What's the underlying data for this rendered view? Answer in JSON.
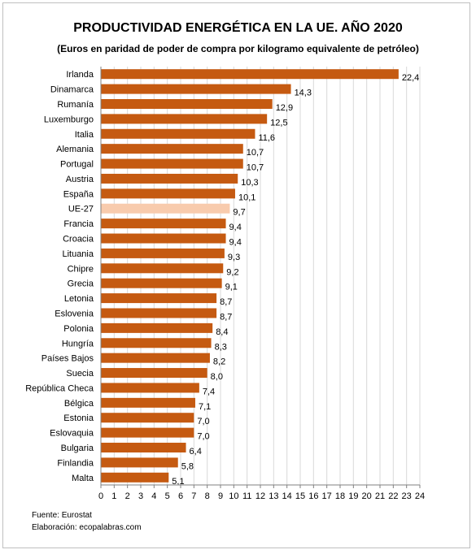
{
  "chart_data": {
    "type": "bar",
    "orientation": "horizontal",
    "title": "PRODUCTIVIDAD ENERGÉTICA EN LA UE. AÑO 2020",
    "subtitle": "(Euros en paridad de poder de compra por kilogramo equivalente de petróleo)",
    "categories": [
      "Irlanda",
      "Dinamarca",
      "Rumanía",
      "Luxemburgo",
      "Italia",
      "Alemania",
      "Portugal",
      "Austria",
      "España",
      "UE-27",
      "Francia",
      "Croacia",
      "Lituania",
      "Chipre",
      "Grecia",
      "Letonia",
      "Eslovenia",
      "Polonia",
      "Hungría",
      "Países Bajos",
      "Suecia",
      "República Checa",
      "Bélgica",
      "Estonia",
      "Eslovaquia",
      "Bulgaria",
      "Finlandia",
      "Malta"
    ],
    "values": [
      22.4,
      14.3,
      12.9,
      12.5,
      11.6,
      10.7,
      10.7,
      10.3,
      10.1,
      9.7,
      9.4,
      9.4,
      9.3,
      9.2,
      9.1,
      8.7,
      8.7,
      8.4,
      8.3,
      8.2,
      8.0,
      7.4,
      7.1,
      7.0,
      7.0,
      6.4,
      5.8,
      5.1
    ],
    "value_labels": [
      "22,4",
      "14,3",
      "12,9",
      "12,5",
      "11,6",
      "10,7",
      "10,7",
      "10,3",
      "10,1",
      "9,7",
      "9,4",
      "9,4",
      "9,3",
      "9,2",
      "9,1",
      "8,7",
      "8,7",
      "8,4",
      "8,3",
      "8,2",
      "8,0",
      "7,4",
      "7,1",
      "7,0",
      "7,0",
      "6,4",
      "5,8",
      "5,1"
    ],
    "highlight_category": "UE-27",
    "xlim": [
      0,
      24
    ],
    "xticks": [
      0,
      1,
      2,
      3,
      4,
      5,
      6,
      7,
      8,
      9,
      10,
      11,
      12,
      13,
      14,
      15,
      16,
      17,
      18,
      19,
      20,
      21,
      22,
      23,
      24
    ],
    "grid": true,
    "colors": {
      "bar": "#c55a11",
      "highlight": "#f8cbad",
      "grid": "#d9d9d9"
    }
  },
  "footer": {
    "source": "Fuente: Eurostat",
    "credit": "Elaboración: ecopalabras.com"
  }
}
